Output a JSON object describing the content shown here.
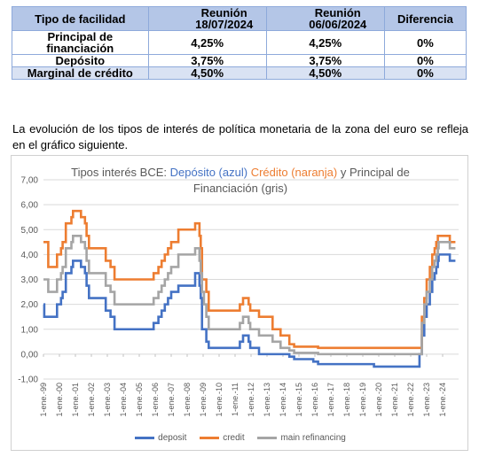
{
  "table": {
    "headers": [
      "Tipo de facilidad",
      "Reunión 18/07/2024",
      "Reunión 06/06/2024",
      "Diferencia"
    ],
    "rows": [
      {
        "name": "Principal de financiación",
        "current": "4,25%",
        "previous": "4,25%",
        "diff": "0%"
      },
      {
        "name": "Depósito",
        "current": "3,75%",
        "previous": "3,75%",
        "diff": "0%"
      },
      {
        "name": "Marginal de crédito",
        "current": "4,50%",
        "previous": "4,50%",
        "diff": "0%"
      }
    ]
  },
  "paragraph": "La evolución de los tipos de interés de política monetaria de la zona del euro se refleja en el gráfico siguiente.",
  "chart_data": {
    "type": "line",
    "title_parts": {
      "lead": "Tipos interés BCE: ",
      "deposit": "Depósito (azul)",
      "credit": "Crédito (naranja)",
      "tail_line1": " y Principal de",
      "tail_line2": "Financiación (gris)"
    },
    "ylim": [
      -1,
      7
    ],
    "yticks": [
      "-1,00",
      "0,00",
      "1,00",
      "2,00",
      "3,00",
      "4,00",
      "5,00",
      "6,00",
      "7,00"
    ],
    "xlim": [
      1999.0,
      2025.0
    ],
    "xticks": [
      "1-ene.-99",
      "1-ene.-00",
      "1-ene.-01",
      "1-ene.-02",
      "1-ene.-03",
      "1-ene.-04",
      "1-ene.-05",
      "1-ene.-06",
      "1-ene.-07",
      "1-ene.-08",
      "1-ene.-09",
      "1-ene.-10",
      "1-ene.-11",
      "1-ene.-12",
      "1-ene.-13",
      "1-ene.-14",
      "1-ene.-15",
      "1-ene.-16",
      "1-ene.-17",
      "1-ene.-18",
      "1-ene.-19",
      "1-ene.-20",
      "1-ene.-21",
      "1-ene.-22",
      "1-ene.-23",
      "1-ene.-24"
    ],
    "grid": true,
    "legend_position": "bottom",
    "series": [
      {
        "name": "deposit",
        "color": "#4472c4",
        "points": [
          [
            1999.0,
            2.0
          ],
          [
            1999.05,
            1.5
          ],
          [
            1999.85,
            2.0
          ],
          [
            2000.1,
            2.25
          ],
          [
            2000.2,
            2.5
          ],
          [
            2000.4,
            3.25
          ],
          [
            2000.75,
            3.5
          ],
          [
            2000.85,
            3.75
          ],
          [
            2001.35,
            3.5
          ],
          [
            2001.6,
            3.25
          ],
          [
            2001.7,
            2.75
          ],
          [
            2001.85,
            2.25
          ],
          [
            2002.9,
            1.75
          ],
          [
            2003.2,
            1.5
          ],
          [
            2003.45,
            1.0
          ],
          [
            2005.9,
            1.25
          ],
          [
            2006.2,
            1.5
          ],
          [
            2006.4,
            1.75
          ],
          [
            2006.6,
            2.0
          ],
          [
            2006.8,
            2.25
          ],
          [
            2007.0,
            2.5
          ],
          [
            2007.45,
            2.75
          ],
          [
            2008.5,
            3.25
          ],
          [
            2008.77,
            2.75
          ],
          [
            2008.85,
            2.25
          ],
          [
            2008.93,
            1.0
          ],
          [
            2009.05,
            1.0
          ],
          [
            2009.2,
            0.5
          ],
          [
            2009.35,
            0.25
          ],
          [
            2011.3,
            0.5
          ],
          [
            2011.5,
            0.75
          ],
          [
            2011.85,
            0.5
          ],
          [
            2011.95,
            0.25
          ],
          [
            2012.5,
            0.0
          ],
          [
            2014.4,
            -0.1
          ],
          [
            2014.7,
            -0.2
          ],
          [
            2015.9,
            -0.3
          ],
          [
            2016.2,
            -0.4
          ],
          [
            2019.7,
            -0.5
          ],
          [
            2022.55,
            0.0
          ],
          [
            2022.7,
            0.75
          ],
          [
            2022.85,
            1.5
          ],
          [
            2023.0,
            2.0
          ],
          [
            2023.2,
            2.5
          ],
          [
            2023.35,
            3.0
          ],
          [
            2023.5,
            3.25
          ],
          [
            2023.6,
            3.5
          ],
          [
            2023.7,
            3.75
          ],
          [
            2023.75,
            4.0
          ],
          [
            2024.45,
            3.75
          ],
          [
            2024.8,
            3.75
          ]
        ]
      },
      {
        "name": "credit",
        "color": "#ed7d31",
        "points": [
          [
            1999.0,
            4.5
          ],
          [
            1999.3,
            3.5
          ],
          [
            1999.85,
            4.0
          ],
          [
            2000.1,
            4.25
          ],
          [
            2000.2,
            4.5
          ],
          [
            2000.4,
            5.25
          ],
          [
            2000.75,
            5.5
          ],
          [
            2000.85,
            5.75
          ],
          [
            2001.35,
            5.5
          ],
          [
            2001.6,
            5.25
          ],
          [
            2001.7,
            4.75
          ],
          [
            2001.85,
            4.25
          ],
          [
            2002.9,
            3.75
          ],
          [
            2003.2,
            3.5
          ],
          [
            2003.45,
            3.0
          ],
          [
            2005.9,
            3.25
          ],
          [
            2006.2,
            3.5
          ],
          [
            2006.4,
            3.75
          ],
          [
            2006.6,
            4.0
          ],
          [
            2006.8,
            4.25
          ],
          [
            2007.0,
            4.5
          ],
          [
            2007.45,
            5.0
          ],
          [
            2008.5,
            5.25
          ],
          [
            2008.77,
            4.75
          ],
          [
            2008.85,
            4.25
          ],
          [
            2008.93,
            3.0
          ],
          [
            2009.05,
            3.0
          ],
          [
            2009.2,
            2.5
          ],
          [
            2009.35,
            1.75
          ],
          [
            2011.3,
            2.0
          ],
          [
            2011.5,
            2.25
          ],
          [
            2011.85,
            2.0
          ],
          [
            2011.95,
            1.75
          ],
          [
            2012.5,
            1.5
          ],
          [
            2013.35,
            1.0
          ],
          [
            2013.85,
            0.75
          ],
          [
            2014.4,
            0.4
          ],
          [
            2014.7,
            0.3
          ],
          [
            2016.2,
            0.25
          ],
          [
            2022.55,
            0.25
          ],
          [
            2022.7,
            1.5
          ],
          [
            2022.85,
            2.25
          ],
          [
            2023.0,
            3.0
          ],
          [
            2023.2,
            3.5
          ],
          [
            2023.35,
            4.0
          ],
          [
            2023.5,
            4.25
          ],
          [
            2023.6,
            4.5
          ],
          [
            2023.7,
            4.75
          ],
          [
            2024.45,
            4.5
          ],
          [
            2024.8,
            4.5
          ]
        ]
      },
      {
        "name": "main refinancing",
        "color": "#a5a5a5",
        "points": [
          [
            1999.0,
            3.0
          ],
          [
            1999.3,
            2.5
          ],
          [
            1999.85,
            3.0
          ],
          [
            2000.1,
            3.25
          ],
          [
            2000.2,
            3.5
          ],
          [
            2000.4,
            4.25
          ],
          [
            2000.75,
            4.5
          ],
          [
            2000.85,
            4.75
          ],
          [
            2001.35,
            4.5
          ],
          [
            2001.6,
            4.25
          ],
          [
            2001.7,
            3.75
          ],
          [
            2001.85,
            3.25
          ],
          [
            2002.9,
            2.75
          ],
          [
            2003.2,
            2.5
          ],
          [
            2003.45,
            2.0
          ],
          [
            2005.9,
            2.25
          ],
          [
            2006.2,
            2.5
          ],
          [
            2006.4,
            2.75
          ],
          [
            2006.6,
            3.0
          ],
          [
            2006.8,
            3.25
          ],
          [
            2007.0,
            3.5
          ],
          [
            2007.45,
            4.0
          ],
          [
            2008.5,
            4.25
          ],
          [
            2008.77,
            3.75
          ],
          [
            2008.85,
            3.25
          ],
          [
            2008.93,
            2.5
          ],
          [
            2009.05,
            2.0
          ],
          [
            2009.2,
            1.5
          ],
          [
            2009.35,
            1.0
          ],
          [
            2011.3,
            1.25
          ],
          [
            2011.5,
            1.5
          ],
          [
            2011.85,
            1.25
          ],
          [
            2011.95,
            1.0
          ],
          [
            2012.5,
            0.75
          ],
          [
            2013.35,
            0.5
          ],
          [
            2013.85,
            0.25
          ],
          [
            2014.4,
            0.15
          ],
          [
            2014.7,
            0.05
          ],
          [
            2016.2,
            0.0
          ],
          [
            2022.55,
            0.0
          ],
          [
            2022.7,
            1.25
          ],
          [
            2022.85,
            2.0
          ],
          [
            2023.0,
            2.5
          ],
          [
            2023.2,
            3.0
          ],
          [
            2023.35,
            3.5
          ],
          [
            2023.5,
            3.75
          ],
          [
            2023.6,
            4.0
          ],
          [
            2023.7,
            4.25
          ],
          [
            2023.75,
            4.5
          ],
          [
            2024.45,
            4.25
          ],
          [
            2024.8,
            4.25
          ]
        ]
      }
    ]
  }
}
